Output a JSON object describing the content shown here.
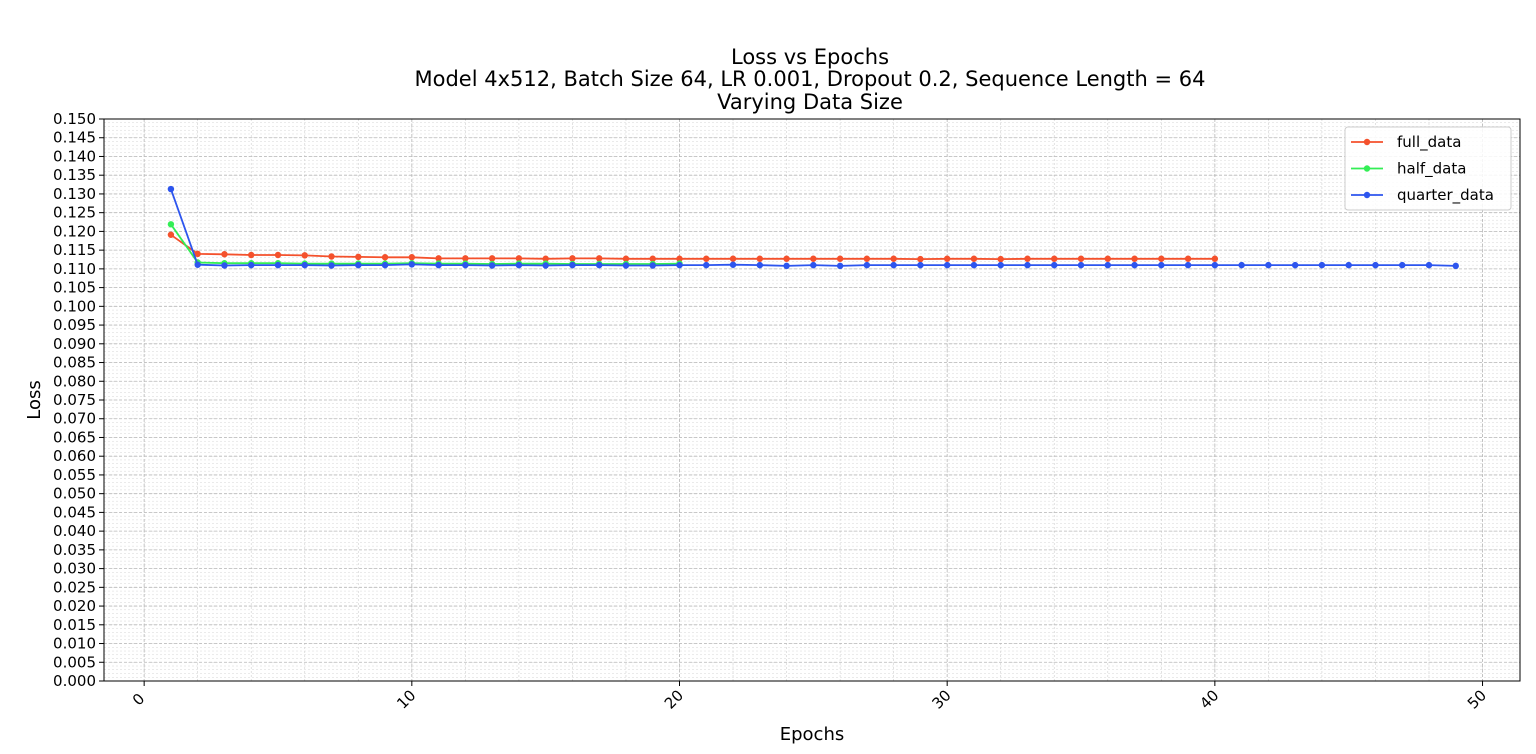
{
  "chart_data": {
    "type": "line",
    "title": "Loss vs Epochs",
    "subtitle_lines": [
      "Model 4x512, Batch Size 64, LR 0.001, Dropout 0.2, Sequence Length = 64",
      "Varying Data Size"
    ],
    "xlabel": "Epochs",
    "ylabel": "Loss",
    "xlim": [
      -1.5,
      51.4
    ],
    "ylim": [
      0.0,
      0.15
    ],
    "x_ticks": [
      0,
      10,
      20,
      30,
      40,
      50
    ],
    "x_tick_labels": [
      "0",
      "10",
      "20",
      "30",
      "40",
      "50"
    ],
    "y_ticks": [
      0.0,
      0.005,
      0.01,
      0.015,
      0.02,
      0.025,
      0.03,
      0.035,
      0.04,
      0.045,
      0.05,
      0.055,
      0.06,
      0.065,
      0.07,
      0.075,
      0.08,
      0.085,
      0.09,
      0.095,
      0.1,
      0.105,
      0.11,
      0.115,
      0.12,
      0.125,
      0.13,
      0.135,
      0.14,
      0.145,
      0.15
    ],
    "y_tick_labels": [
      "0.000",
      "0.005",
      "0.010",
      "0.015",
      "0.020",
      "0.025",
      "0.030",
      "0.035",
      "0.040",
      "0.045",
      "0.050",
      "0.055",
      "0.060",
      "0.065",
      "0.070",
      "0.075",
      "0.080",
      "0.085",
      "0.090",
      "0.095",
      "0.100",
      "0.105",
      "0.110",
      "0.115",
      "0.120",
      "0.125",
      "0.130",
      "0.135",
      "0.140",
      "0.145",
      "0.150"
    ],
    "grid": "major and minor",
    "legend_position": "top-right",
    "series": [
      {
        "name": "full_data",
        "color": "#f4512c",
        "x": [
          1,
          2,
          3,
          4,
          5,
          6,
          7,
          8,
          9,
          10,
          11,
          12,
          13,
          14,
          15,
          16,
          17,
          18,
          19,
          20,
          21,
          22,
          23,
          24,
          25,
          26,
          27,
          28,
          29,
          30,
          31,
          32,
          33,
          34,
          35,
          36,
          37,
          38,
          39,
          40
        ],
        "y": [
          0.1191,
          0.114,
          0.1139,
          0.1137,
          0.1137,
          0.1136,
          0.1133,
          0.1132,
          0.1131,
          0.1131,
          0.1128,
          0.1128,
          0.1128,
          0.1128,
          0.1127,
          0.1128,
          0.1128,
          0.1127,
          0.1127,
          0.1127,
          0.1127,
          0.1127,
          0.1127,
          0.1127,
          0.1127,
          0.1127,
          0.1127,
          0.1127,
          0.1126,
          0.1127,
          0.1127,
          0.1126,
          0.1127,
          0.1127,
          0.1127,
          0.1127,
          0.1127,
          0.1127,
          0.1127,
          0.1127
        ]
      },
      {
        "name": "half_data",
        "color": "#33ee55",
        "x": [
          1,
          2,
          3,
          4,
          5,
          6,
          7,
          8,
          9,
          10,
          11,
          12,
          13,
          14,
          15,
          16,
          17,
          18,
          19,
          20
        ],
        "y": [
          0.1219,
          0.1117,
          0.1115,
          0.1115,
          0.1115,
          0.1114,
          0.1114,
          0.1114,
          0.1114,
          0.1115,
          0.1114,
          0.1114,
          0.1113,
          0.1114,
          0.1114,
          0.1113,
          0.1113,
          0.1113,
          0.1113,
          0.1114
        ]
      },
      {
        "name": "quarter_data",
        "color": "#2d55ee",
        "x": [
          1,
          2,
          3,
          4,
          5,
          6,
          7,
          8,
          9,
          10,
          11,
          12,
          13,
          14,
          15,
          16,
          17,
          18,
          19,
          20,
          21,
          22,
          23,
          24,
          25,
          26,
          27,
          28,
          29,
          30,
          31,
          32,
          33,
          34,
          35,
          36,
          37,
          38,
          39,
          40,
          41,
          42,
          43,
          44,
          45,
          46,
          47,
          48,
          49
        ],
        "y": [
          0.1313,
          0.1111,
          0.1109,
          0.111,
          0.111,
          0.111,
          0.1109,
          0.111,
          0.111,
          0.1112,
          0.111,
          0.111,
          0.1109,
          0.111,
          0.1109,
          0.111,
          0.111,
          0.1109,
          0.1109,
          0.111,
          0.111,
          0.1111,
          0.111,
          0.1108,
          0.111,
          0.1108,
          0.111,
          0.111,
          0.111,
          0.111,
          0.111,
          0.111,
          0.111,
          0.111,
          0.111,
          0.111,
          0.111,
          0.111,
          0.111,
          0.111,
          0.111,
          0.111,
          0.111,
          0.111,
          0.111,
          0.111,
          0.111,
          0.111,
          0.1108
        ]
      }
    ]
  }
}
